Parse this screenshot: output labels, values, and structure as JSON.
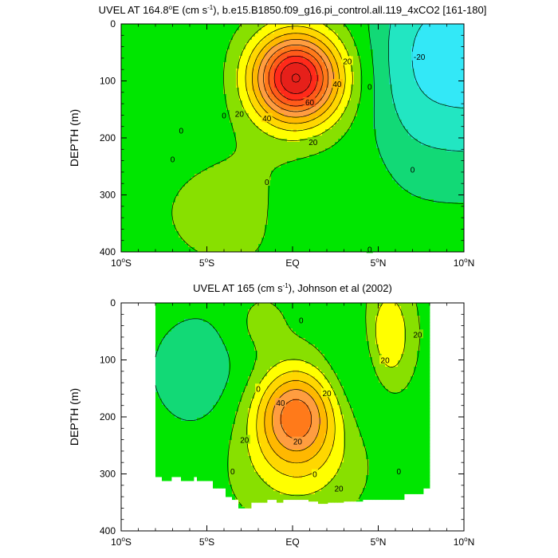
{
  "chart_data": [
    {
      "type": "contour",
      "title_main": "UVEL AT 164.8",
      "title_deg": "o",
      "title_unit_pre": "E (cm s",
      "title_unit_exp": "-1",
      "title_rest": "), b.e15.B1850.f09_g16.pi_control.all.119_4xCO2 [161-180]",
      "ylabel": "DEPTH (m)",
      "x_tick_values": [
        -10,
        -5,
        0,
        5,
        10
      ],
      "x_tick_labels": [
        {
          "num": "10",
          "deg": "o",
          "hemi": "S"
        },
        {
          "num": "5",
          "deg": "o",
          "hemi": "S"
        },
        {
          "num": "EQ",
          "deg": "",
          "hemi": ""
        },
        {
          "num": "5",
          "deg": "o",
          "hemi": "N"
        },
        {
          "num": "10",
          "deg": "o",
          "hemi": "N"
        }
      ],
      "y_ticks": [
        0,
        100,
        200,
        300,
        400
      ],
      "xlim": [
        -10,
        10
      ],
      "ylim": [
        0,
        400
      ],
      "data_xlim": [
        -10,
        10
      ],
      "contour_interval": 10,
      "core": {
        "lat": 0.2,
        "depth": 95,
        "max": 95
      },
      "contour_labels": [
        {
          "text": "20",
          "lat": 3.2,
          "depth": 65
        },
        {
          "text": "40",
          "lat": 2.6,
          "depth": 105
        },
        {
          "text": "60",
          "lat": 1.0,
          "depth": 137
        },
        {
          "text": "40",
          "lat": -1.5,
          "depth": 165
        },
        {
          "text": "20",
          "lat": -3.1,
          "depth": 157
        },
        {
          "text": "20",
          "lat": 1.2,
          "depth": 207
        },
        {
          "text": "0",
          "lat": -4.0,
          "depth": 160
        },
        {
          "text": "0",
          "lat": -7.0,
          "depth": 237
        },
        {
          "text": "0",
          "lat": 4.5,
          "depth": 110
        },
        {
          "text": "0",
          "lat": -1.5,
          "depth": 277
        },
        {
          "text": "0",
          "lat": -6.5,
          "depth": 187
        },
        {
          "text": "0",
          "lat": 7.0,
          "depth": 255
        },
        {
          "text": "0",
          "lat": 4.5,
          "depth": 395
        },
        {
          "text": "-20",
          "lat": 7.4,
          "depth": 57
        }
      ]
    },
    {
      "type": "contour",
      "title_main": "UVEL AT 165 (cm s",
      "title_unit_exp": "-1",
      "title_rest": "), Johnson et al (2002)",
      "ylabel": "DEPTH (m)",
      "x_tick_values": [
        -10,
        -5,
        0,
        5,
        10
      ],
      "x_tick_labels": [
        {
          "num": "10",
          "deg": "o",
          "hemi": "S"
        },
        {
          "num": "5",
          "deg": "o",
          "hemi": "S"
        },
        {
          "num": "EQ",
          "deg": "",
          "hemi": ""
        },
        {
          "num": "5",
          "deg": "o",
          "hemi": "N"
        },
        {
          "num": "10",
          "deg": "o",
          "hemi": "N"
        }
      ],
      "y_ticks": [
        0,
        100,
        200,
        300,
        400
      ],
      "xlim": [
        -10,
        10
      ],
      "ylim": [
        0,
        400
      ],
      "data_xlim": [
        -8,
        8
      ],
      "contour_interval": 10,
      "core": {
        "lat": 0.2,
        "depth": 190,
        "max": 48
      },
      "contour_labels": [
        {
          "text": "40",
          "lat": -0.7,
          "depth": 175
        },
        {
          "text": "20",
          "lat": 2.0,
          "depth": 158
        },
        {
          "text": "20",
          "lat": -2.8,
          "depth": 240
        },
        {
          "text": "20",
          "lat": 0.3,
          "depth": 243
        },
        {
          "text": "20",
          "lat": 2.7,
          "depth": 325
        },
        {
          "text": "0",
          "lat": 0.5,
          "depth": 30
        },
        {
          "text": "0",
          "lat": -2.0,
          "depth": 150
        },
        {
          "text": "0",
          "lat": -3.5,
          "depth": 295
        },
        {
          "text": "0",
          "lat": 1.3,
          "depth": 300
        },
        {
          "text": "0",
          "lat": 6.2,
          "depth": 295
        },
        {
          "text": "20",
          "lat": 5.4,
          "depth": 100
        },
        {
          "text": "20",
          "lat": 7.3,
          "depth": 55
        }
      ]
    }
  ]
}
